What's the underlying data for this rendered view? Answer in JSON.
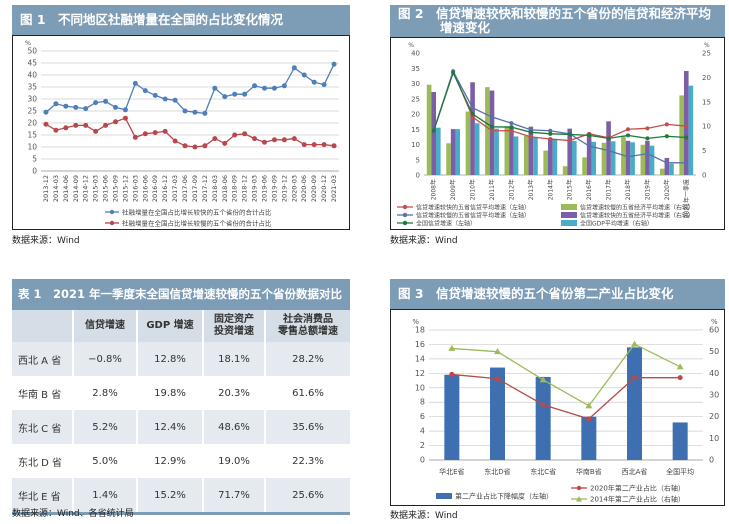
{
  "fig1": {
    "title": "图 1　不同地区社融增量在全国的占比变化情况",
    "source": "数据来源：Wind"
  },
  "fig2": {
    "title_line1": "图 2　信贷增速较快和较慢的五个省份的信贷和经济平均",
    "title_line2": "增速变化",
    "source": "数据来源：Wind"
  },
  "table1": {
    "title": "表 1　2021 年一季度末全国信贷增速较慢的五个省份数据对比",
    "headers": [
      "",
      "信贷增速",
      "GDP 增速",
      "固定资产\n投资增速",
      "社会消费品\n零售总额增速"
    ],
    "header_lines": {
      "h3a": "固定资产",
      "h3b": "投资增速",
      "h4a": "社会消费品",
      "h4b": "零售总额增速"
    },
    "rows": [
      [
        "西北 A 省",
        "−0.8%",
        "12.8%",
        "18.1%",
        "28.2%"
      ],
      [
        "华南 B 省",
        "2.8%",
        "19.8%",
        "20.3%",
        "61.6%"
      ],
      [
        "东北 C 省",
        "5.2%",
        "12.4%",
        "48.6%",
        "35.6%"
      ],
      [
        "东北 D 省",
        "5.0%",
        "12.9%",
        "19.0%",
        "22.3%"
      ],
      [
        "华北 E 省",
        "1.4%",
        "15.2%",
        "71.7%",
        "25.6%"
      ]
    ],
    "source": "数据来源：Wind、各省统计局"
  },
  "fig3": {
    "title": "图 3　信贷增速较慢的五个省份第二产业占比变化",
    "source": "数据来源：Wind"
  },
  "colors": {
    "header": "#7d9cb6"
  },
  "chart_data": [
    {
      "type": "line",
      "title": "不同地区社融增量在全国的占比变化情况",
      "unit_left": "%",
      "grid": true,
      "legend": "bottom",
      "y_left": {
        "min": 0,
        "max": 50,
        "step": 5
      },
      "categories": [
        "2013-12",
        "2014-03",
        "2014-06",
        "2014-09",
        "2014-12",
        "2015-03",
        "2015-06",
        "2015-09",
        "2015-12",
        "2016-03",
        "2016-06",
        "2016-09",
        "2016-12",
        "2017-03",
        "2017-06",
        "2017-09",
        "2017-12",
        "2018-03",
        "2018-06",
        "2018-09",
        "2018-12",
        "2019-03",
        "2019-06",
        "2019-09",
        "2019-12",
        "2020-03",
        "2020-06",
        "2020-09",
        "2020-12",
        "2021-03"
      ],
      "series": [
        {
          "name": "社融增量在全国占比增长较快的五个省份的合计占比",
          "type": "line",
          "axis": "left",
          "color": "#4f7fb8",
          "marker": "circle",
          "values": [
            24.5,
            28,
            27,
            26.5,
            26,
            28.5,
            29,
            26.5,
            25.5,
            36.5,
            33.5,
            31.5,
            30,
            29.5,
            25,
            24.5,
            24,
            34.5,
            31,
            32,
            32,
            35.5,
            34.5,
            34.5,
            35.5,
            43,
            40,
            37,
            36,
            44.5
          ]
        },
        {
          "name": "社融增量在全国占比增长较慢的五个省份的合计占比",
          "type": "line",
          "axis": "left",
          "color": "#b8484d",
          "marker": "circle",
          "values": [
            19.5,
            17,
            18,
            19,
            19,
            16.5,
            19,
            20.5,
            22,
            14,
            15.5,
            16,
            16.5,
            12.5,
            10.5,
            10,
            10.5,
            13.5,
            11.5,
            15,
            15.5,
            13.5,
            12,
            13,
            13,
            13.5,
            11,
            11,
            11,
            10.5
          ]
        }
      ]
    },
    {
      "type": "bar",
      "title": "信贷增速较快和较慢的五个省份的信贷和经济平均增速变化",
      "unit_left": "%",
      "unit_right": "%",
      "grid": false,
      "legend": "bottom",
      "y_left": {
        "min": 0,
        "max": 40,
        "step": 5
      },
      "y_right": {
        "min": 0,
        "max": 25,
        "step": 5
      },
      "categories": [
        "2008年",
        "2009年",
        "2010年",
        "2011年",
        "2012年",
        "2013年",
        "2014年",
        "2015年",
        "2016年",
        "2017年",
        "2018年",
        "2019年",
        "2020年",
        "2021年一季度"
      ],
      "series": [
        {
          "name": "信贷增速较快的五省信贷平均增速（左轴）",
          "type": "line",
          "axis": "left",
          "color": "#c0504d",
          "marker": "circle",
          "values": [
            14.5,
            34,
            19,
            14.5,
            14.5,
            12.5,
            11.8,
            11.3,
            13.5,
            12.2,
            15,
            15.3,
            16.6,
            16
          ]
        },
        {
          "name": "信贷增速较慢的五省信贷平均增速（左轴）",
          "type": "line",
          "axis": "left",
          "color": "#5a6fa8",
          "marker": "circle",
          "values": [
            14.5,
            34,
            22,
            19,
            17,
            14.8,
            14.5,
            13.5,
            9.5,
            8,
            6,
            7,
            4,
            4
          ]
        },
        {
          "name": "全国信贷增速（左轴）",
          "type": "line",
          "axis": "left",
          "color": "#1e7a3c",
          "marker": "circle",
          "values": [
            14.5,
            33.5,
            20,
            15.8,
            15.7,
            14,
            13.5,
            13.3,
            13,
            12,
            13,
            12,
            12.7,
            12.3
          ]
        },
        {
          "name": "信贷增速较慢的五省经济平均增速（右轴）",
          "type": "bar",
          "axis": "right",
          "color": "#9bbb59",
          "values": [
            18.5,
            6.5,
            13,
            18,
            10,
            8,
            5,
            1.8,
            3.6,
            6.6,
            8,
            6.2,
            1.3,
            16.3
          ]
        },
        {
          "name": "信贷增速较快的五省经济平均增速（右轴）",
          "type": "bar",
          "axis": "right",
          "color": "#7b5ea7",
          "values": [
            17,
            9.4,
            19,
            17.3,
            10,
            9.9,
            7.5,
            9.5,
            8.6,
            11,
            7,
            7,
            3.5,
            21.3
          ]
        },
        {
          "name": "全国GDP平均增速（右轴）",
          "type": "bar",
          "axis": "right",
          "color": "#4aacc6",
          "values": [
            9.7,
            9.4,
            10.6,
            9.5,
            7.9,
            7.8,
            7.4,
            7,
            6.8,
            6.9,
            6.7,
            6,
            2.3,
            18.3
          ]
        }
      ]
    },
    {
      "type": "bar",
      "title": "信贷增速较慢的五个省份第二产业占比变化",
      "unit_left": "%",
      "unit_right": "%",
      "grid": true,
      "legend": "bottom",
      "y_left": {
        "min": 0,
        "max": 18,
        "step": 2
      },
      "y_right": {
        "min": 0,
        "max": 60,
        "step": 10
      },
      "categories": [
        "华北E省",
        "东北D省",
        "东北C省",
        "华南B省",
        "西北A省",
        "全国平均"
      ],
      "series": [
        {
          "name": "第二产业占比下降幅度（左轴）",
          "type": "bar",
          "axis": "left",
          "color": "#3e6fb0",
          "values": [
            11.8,
            12.8,
            11.5,
            6,
            15.6,
            5.2
          ]
        },
        {
          "name": "2020年第二产业占比（右轴）",
          "type": "line",
          "axis": "right",
          "color": "#b84a4a",
          "marker": "circle",
          "values": [
            39.5,
            37.5,
            25.5,
            19,
            38,
            38
          ]
        },
        {
          "name": "2014年第二产业占比（右轴）",
          "type": "line",
          "axis": "right",
          "color": "#9bbb59",
          "marker": "triangle",
          "values": [
            51.5,
            50,
            37,
            25,
            53.5,
            43
          ]
        }
      ]
    }
  ]
}
